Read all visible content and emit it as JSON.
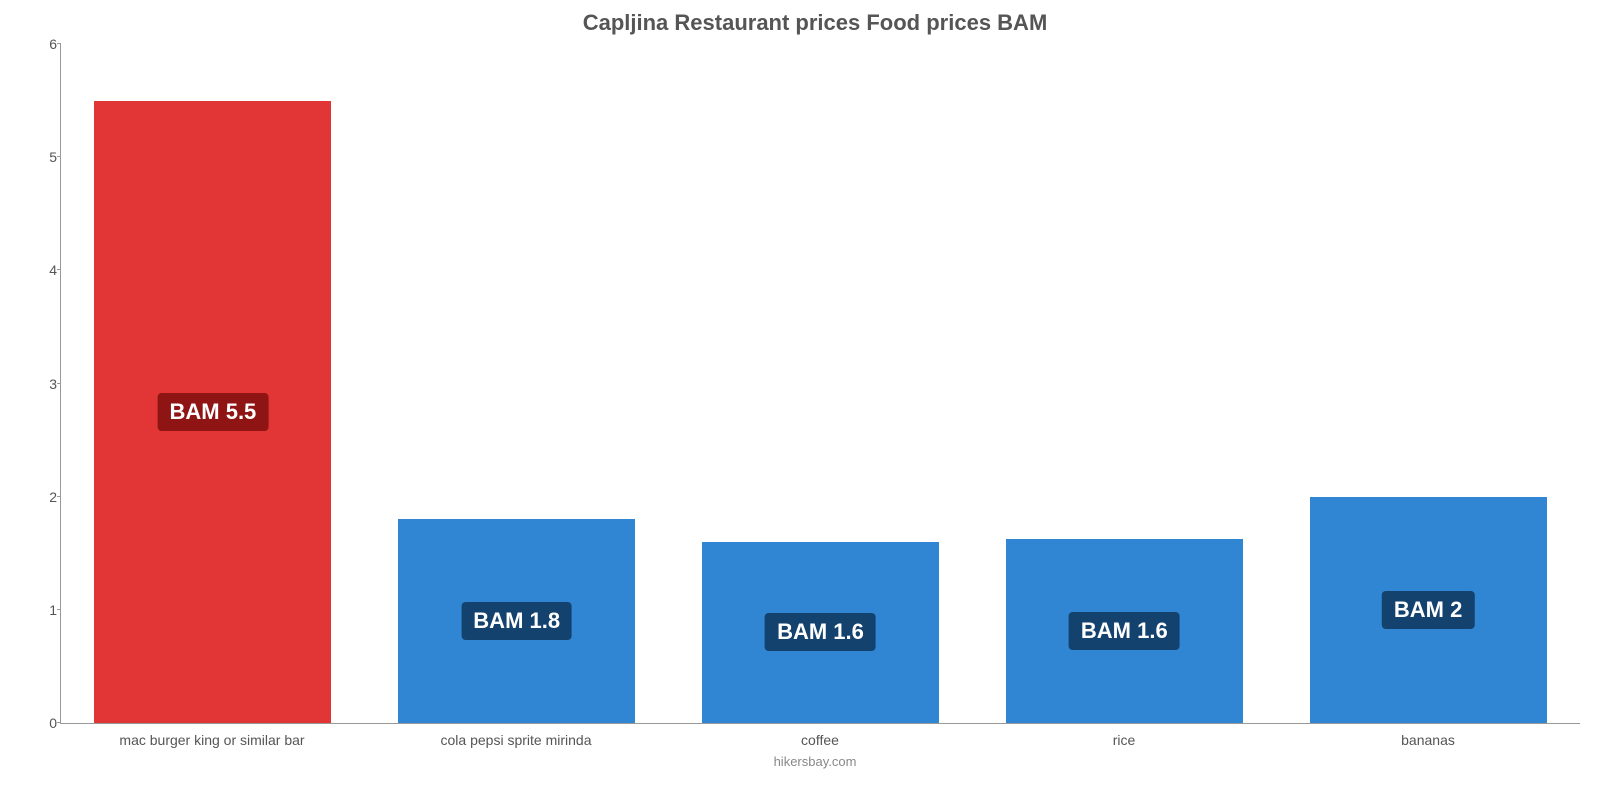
{
  "chart": {
    "type": "bar",
    "title": "Capljina Restaurant prices Food prices BAM",
    "title_fontsize": 22,
    "title_color": "#555555",
    "attribution": "hikersbay.com",
    "attribution_color": "#888888",
    "background_color": "#ffffff",
    "axis_color": "#999999",
    "ylim_min": 0,
    "ylim_max": 6,
    "ytick_step": 1,
    "yticks": [
      {
        "value": 0,
        "label": "0"
      },
      {
        "value": 1,
        "label": "1"
      },
      {
        "value": 2,
        "label": "2"
      },
      {
        "value": 3,
        "label": "3"
      },
      {
        "value": 4,
        "label": "4"
      },
      {
        "value": 5,
        "label": "5"
      },
      {
        "value": 6,
        "label": "6"
      }
    ],
    "bar_width_pct": 78,
    "label_fontsize": 22,
    "xlabel_fontsize": 14,
    "ytick_fontsize": 14,
    "bars": [
      {
        "category": "mac burger king or similar bar",
        "value": 5.5,
        "value_label": "BAM 5.5",
        "bar_color": "#e23636",
        "label_bg": "#8f1414",
        "label_text_color": "#ffffff"
      },
      {
        "category": "cola pepsi sprite mirinda",
        "value": 1.8,
        "value_label": "BAM 1.8",
        "bar_color": "#3186d4",
        "label_bg": "#14426e",
        "label_text_color": "#ffffff"
      },
      {
        "category": "coffee",
        "value": 1.6,
        "value_label": "BAM 1.6",
        "bar_color": "#3186d4",
        "label_bg": "#14426e",
        "label_text_color": "#ffffff"
      },
      {
        "category": "rice",
        "value": 1.63,
        "value_label": "BAM 1.6",
        "bar_color": "#3186d4",
        "label_bg": "#14426e",
        "label_text_color": "#ffffff"
      },
      {
        "category": "bananas",
        "value": 2.0,
        "value_label": "BAM 2",
        "bar_color": "#3186d4",
        "label_bg": "#14426e",
        "label_text_color": "#ffffff"
      }
    ]
  }
}
